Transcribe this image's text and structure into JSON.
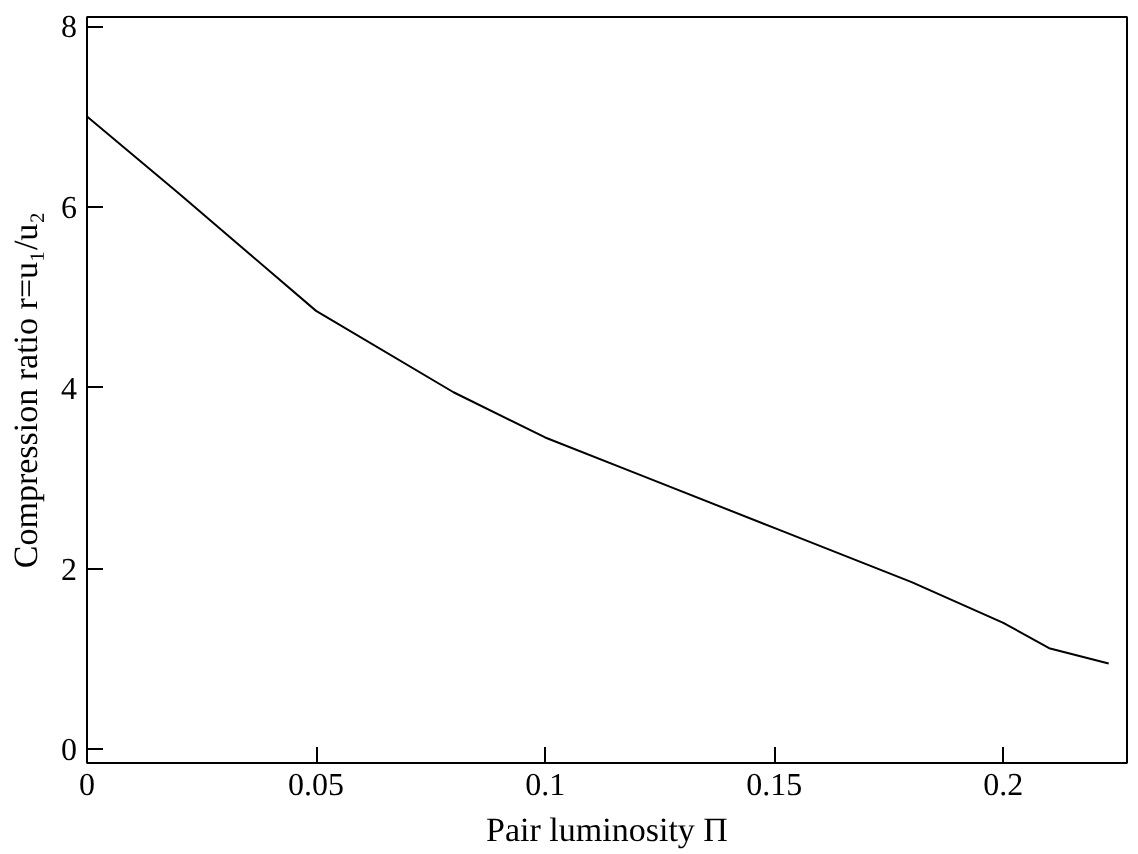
{
  "chart_data": {
    "type": "line",
    "xlabel": "Pair luminosity Π",
    "ylabel": "Compression ratio r=u₁/u₂",
    "x": [
      0,
      0.02,
      0.05,
      0.08,
      0.1,
      0.12,
      0.15,
      0.18,
      0.2,
      0.21,
      0.223
    ],
    "series": [
      {
        "color": "#000000",
        "values": [
          7.0,
          6.15,
          4.85,
          3.95,
          3.45,
          3.05,
          2.45,
          1.85,
          1.4,
          1.12,
          0.95
        ]
      }
    ],
    "xlim": [
      0,
      0.227
    ],
    "ylim": [
      -0.15,
      8.1
    ],
    "xticks": [
      0,
      0.05,
      0.1,
      0.15,
      0.2
    ],
    "yticks": [
      0,
      2,
      4,
      6,
      8
    ],
    "grid": false,
    "marker": "none",
    "line_style": "solid"
  }
}
